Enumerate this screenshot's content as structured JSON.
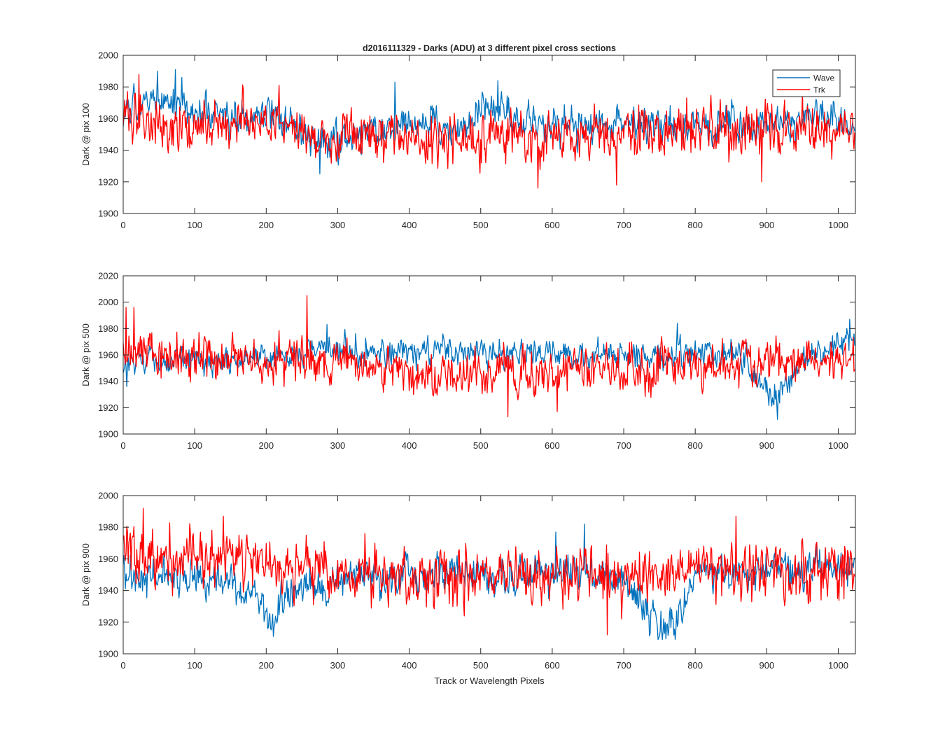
{
  "figure": {
    "title": "d2016111329 - Darks (ADU) at 3 different pixel cross sections",
    "xlabel": "Track or Wavelength Pixels"
  },
  "colors": {
    "wave": "#0072BD",
    "trk": "#FF0000",
    "axis": "#262626"
  },
  "chart_data": [
    {
      "type": "line",
      "ylabel": "Dark @ pix 100",
      "xlim": [
        0,
        1024
      ],
      "ylim": [
        1900,
        2000
      ],
      "xticks": [
        0,
        100,
        200,
        300,
        400,
        500,
        600,
        700,
        800,
        900,
        1000
      ],
      "yticks": [
        1900,
        1920,
        1940,
        1960,
        1980,
        2000
      ],
      "legend": {
        "placement": "top-right",
        "entries": [
          "Wave",
          "Trk"
        ]
      },
      "grid": false,
      "n_points": 1024,
      "series": [
        {
          "name": "Wave",
          "color": "#0072BD",
          "trend_x": [
            0,
            20,
            45,
            75,
            100,
            150,
            200,
            240,
            270,
            300,
            350,
            380,
            430,
            480,
            500,
            525,
            560,
            600,
            650,
            700,
            750,
            800,
            850,
            900,
            950,
            970,
            1000,
            1023
          ],
          "trend_y": [
            1962,
            1966,
            1970,
            1972,
            1964,
            1958,
            1962,
            1955,
            1942,
            1946,
            1954,
            1958,
            1955,
            1953,
            1966,
            1970,
            1958,
            1955,
            1952,
            1957,
            1956,
            1953,
            1955,
            1956,
            1958,
            1966,
            1958,
            1957
          ],
          "noise": 5.5,
          "peaks": [
            [
              48,
              1990
            ],
            [
              73,
              1991
            ],
            [
              524,
              1984
            ],
            [
              380,
              1983
            ],
            [
              275,
              1925
            ]
          ],
          "range": [
            1925,
            1991
          ]
        },
        {
          "name": "Trk",
          "color": "#FF0000",
          "trend_x": [
            0,
            30,
            80,
            150,
            220,
            300,
            400,
            500,
            600,
            700,
            800,
            900,
            1000,
            1023
          ],
          "trend_y": [
            1964,
            1960,
            1957,
            1955,
            1955,
            1950,
            1949,
            1948,
            1948,
            1948,
            1953,
            1953,
            1955,
            1955
          ],
          "noise": 8,
          "peaks": [
            [
              22,
              1988
            ],
            [
              218,
              1981
            ],
            [
              580,
              1916
            ],
            [
              690,
              1918
            ],
            [
              893,
              1920
            ]
          ],
          "range": [
            1916,
            1988
          ]
        }
      ]
    },
    {
      "type": "line",
      "ylabel": "Dark @ pix 500",
      "xlim": [
        0,
        1024
      ],
      "ylim": [
        1900,
        2020
      ],
      "xticks": [
        0,
        100,
        200,
        300,
        400,
        500,
        600,
        700,
        800,
        900,
        1000
      ],
      "yticks": [
        1900,
        1920,
        1940,
        1960,
        1980,
        2000,
        2020
      ],
      "grid": false,
      "n_points": 1024,
      "series": [
        {
          "name": "Wave",
          "color": "#0072BD",
          "trend_x": [
            0,
            50,
            150,
            250,
            280,
            350,
            500,
            600,
            700,
            800,
            860,
            890,
            910,
            930,
            960,
            1000,
            1023
          ],
          "trend_y": [
            1955,
            1956,
            1955,
            1960,
            1968,
            1962,
            1962,
            1960,
            1960,
            1962,
            1962,
            1938,
            1925,
            1942,
            1960,
            1972,
            1968
          ],
          "noise": 5,
          "peaks": [
            [
              5,
              1936
            ],
            [
              915,
              1911
            ],
            [
              1016,
              1987
            ],
            [
              285,
              1983
            ],
            [
              775,
              1984
            ]
          ],
          "range": [
            1911,
            1987
          ]
        },
        {
          "name": "Trk",
          "color": "#FF0000",
          "trend_x": [
            0,
            50,
            150,
            260,
            350,
            450,
            550,
            650,
            750,
            850,
            950,
            1023
          ],
          "trend_y": [
            1960,
            1958,
            1957,
            1955,
            1950,
            1947,
            1947,
            1948,
            1950,
            1953,
            1955,
            1956
          ],
          "noise": 8,
          "peaks": [
            [
              257,
              2005
            ],
            [
              4,
              1996
            ],
            [
              15,
              1996
            ],
            [
              538,
              1913
            ],
            [
              607,
              1917
            ]
          ],
          "range": [
            1913,
            2005
          ]
        }
      ]
    },
    {
      "type": "line",
      "ylabel": "Dark @ pix 900",
      "xlim": [
        0,
        1024
      ],
      "ylim": [
        1900,
        2000
      ],
      "xticks": [
        0,
        100,
        200,
        300,
        400,
        500,
        600,
        700,
        800,
        900,
        1000
      ],
      "yticks": [
        1900,
        1920,
        1940,
        1960,
        1980,
        2000
      ],
      "grid": false,
      "n_points": 1024,
      "series": [
        {
          "name": "Wave",
          "color": "#0072BD",
          "trend_x": [
            0,
            100,
            150,
            180,
            205,
            240,
            300,
            400,
            500,
            600,
            650,
            700,
            730,
            750,
            775,
            800,
            900,
            1023
          ],
          "trend_y": [
            1950,
            1948,
            1945,
            1937,
            1922,
            1940,
            1946,
            1950,
            1948,
            1950,
            1955,
            1943,
            1930,
            1918,
            1920,
            1952,
            1952,
            1955
          ],
          "noise": 5.5,
          "peaks": [
            [
              645,
              1982
            ],
            [
              202,
              1916
            ],
            [
              748,
              1909
            ],
            [
              605,
              1977
            ]
          ],
          "range": [
            1909,
            1982
          ]
        },
        {
          "name": "Trk",
          "color": "#FF0000",
          "trend_x": [
            0,
            50,
            150,
            250,
            300,
            400,
            500,
            600,
            700,
            800,
            900,
            1023
          ],
          "trend_y": [
            1962,
            1962,
            1960,
            1955,
            1950,
            1948,
            1950,
            1948,
            1948,
            1950,
            1952,
            1953
          ],
          "noise": 8.5,
          "peaks": [
            [
              28,
              1992
            ],
            [
              140,
              1987
            ],
            [
              857,
              1987
            ],
            [
              338,
              1976
            ],
            [
              677,
              1912
            ]
          ],
          "range": [
            1912,
            1992
          ]
        }
      ]
    }
  ]
}
